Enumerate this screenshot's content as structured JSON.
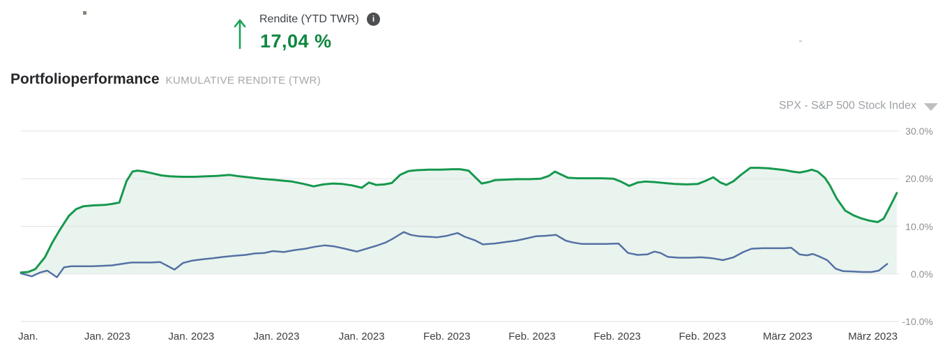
{
  "kpi": {
    "label": "Rendite (YTD TWR)",
    "value": "17,04 %",
    "info_glyph": "i",
    "arrow_icon": "arrow-up",
    "info_icon": "info-circle"
  },
  "title": {
    "main": "Portfolioperformance",
    "subtitle": "KUMULATIVE RENDITE (TWR)"
  },
  "benchmark_selector": {
    "value": "SPX - S&P 500 Stock Index",
    "chevron_icon": "chevron-down"
  },
  "colors": {
    "kpi_green": "#0d873f",
    "arrow_green": "#1aa158",
    "portfolio_line": "#16984e",
    "portfolio_fill": "#e9f4ee",
    "benchmark_line": "#5471a4",
    "gridline": "#e2e2e2",
    "y_label": "#8e9093",
    "x_label": "#3b3d40"
  },
  "chart_data": {
    "type": "area",
    "title": "Portfolioperformance — Kumulative Rendite (TWR)",
    "x_unit": "trading timeline Jan 2023 – mid Mar 2023 (day index from Jan 1)",
    "x_range": [
      0,
      73.5
    ],
    "ylim": [
      -13.5,
      32
    ],
    "grid": true,
    "legend_position": "none",
    "y_ticks": [
      {
        "label": "30.0%",
        "value": 30
      },
      {
        "label": "20.0%",
        "value": 20
      },
      {
        "label": "10.0%",
        "value": 10
      },
      {
        "label": "0.0%",
        "value": 0
      },
      {
        "label": "-10.0%",
        "value": -10
      }
    ],
    "x_ticks": [
      {
        "label": "Jan.",
        "x": 0.6
      },
      {
        "label": "Jan. 2023",
        "x": 7.2
      },
      {
        "label": "Jan. 2023",
        "x": 14.2
      },
      {
        "label": "Jan. 2023",
        "x": 21.3
      },
      {
        "label": "Jan. 2023",
        "x": 28.4
      },
      {
        "label": "Feb. 2023",
        "x": 35.5
      },
      {
        "label": "Feb. 2023",
        "x": 42.6
      },
      {
        "label": "Feb. 2023",
        "x": 49.7
      },
      {
        "label": "Feb. 2023",
        "x": 56.8
      },
      {
        "label": "März 2023",
        "x": 63.9
      },
      {
        "label": "März 2023",
        "x": 71.0
      }
    ],
    "series": [
      {
        "name": "Portfolio Rendite (TWR)",
        "type": "area-line",
        "color": "#16984e",
        "fill_color": "#e9f4ee",
        "baseline": 0,
        "final_value_pct": 17.04,
        "points": [
          [
            0,
            0.3
          ],
          [
            0.6,
            0.4
          ],
          [
            1.2,
            1.0
          ],
          [
            2,
            3.5
          ],
          [
            2.6,
            6.5
          ],
          [
            3.3,
            9.5
          ],
          [
            4,
            12.2
          ],
          [
            4.6,
            13.6
          ],
          [
            5.2,
            14.2
          ],
          [
            6,
            14.4
          ],
          [
            7,
            14.5
          ],
          [
            7.6,
            14.7
          ],
          [
            8.2,
            15.0
          ],
          [
            8.8,
            19.5
          ],
          [
            9.3,
            21.5
          ],
          [
            9.7,
            21.7
          ],
          [
            10.3,
            21.5
          ],
          [
            11,
            21.1
          ],
          [
            11.7,
            20.7
          ],
          [
            12.4,
            20.5
          ],
          [
            13.5,
            20.4
          ],
          [
            14.5,
            20.4
          ],
          [
            15.5,
            20.5
          ],
          [
            16.3,
            20.6
          ],
          [
            17.4,
            20.8
          ],
          [
            18.2,
            20.5
          ],
          [
            19,
            20.3
          ],
          [
            20,
            20.0
          ],
          [
            21,
            19.8
          ],
          [
            21.8,
            19.6
          ],
          [
            22.6,
            19.4
          ],
          [
            23.6,
            18.9
          ],
          [
            24.4,
            18.4
          ],
          [
            25.2,
            18.8
          ],
          [
            26,
            19.0
          ],
          [
            26.8,
            18.9
          ],
          [
            27.6,
            18.6
          ],
          [
            28.4,
            18.1
          ],
          [
            29,
            19.2
          ],
          [
            29.6,
            18.7
          ],
          [
            30.3,
            18.8
          ],
          [
            30.9,
            19.1
          ],
          [
            31.6,
            20.8
          ],
          [
            32.3,
            21.6
          ],
          [
            33,
            21.8
          ],
          [
            34,
            21.9
          ],
          [
            35,
            21.9
          ],
          [
            36,
            22.0
          ],
          [
            36.6,
            22.0
          ],
          [
            37.3,
            21.7
          ],
          [
            38,
            20.0
          ],
          [
            38.4,
            19.0
          ],
          [
            39,
            19.3
          ],
          [
            39.5,
            19.7
          ],
          [
            40.3,
            19.8
          ],
          [
            41.3,
            19.9
          ],
          [
            42.3,
            19.9
          ],
          [
            43.3,
            20.0
          ],
          [
            44,
            20.6
          ],
          [
            44.5,
            21.5
          ],
          [
            45,
            20.9
          ],
          [
            45.6,
            20.2
          ],
          [
            46.4,
            20.1
          ],
          [
            47.4,
            20.1
          ],
          [
            48.4,
            20.1
          ],
          [
            49.4,
            20.0
          ],
          [
            50,
            19.4
          ],
          [
            50.7,
            18.5
          ],
          [
            51.4,
            19.2
          ],
          [
            52,
            19.4
          ],
          [
            52.8,
            19.3
          ],
          [
            53.6,
            19.1
          ],
          [
            54.5,
            18.9
          ],
          [
            55.5,
            18.8
          ],
          [
            56.4,
            18.9
          ],
          [
            57.1,
            19.6
          ],
          [
            57.7,
            20.3
          ],
          [
            58.3,
            19.2
          ],
          [
            58.8,
            18.7
          ],
          [
            59.4,
            19.5
          ],
          [
            60,
            20.8
          ],
          [
            60.8,
            22.3
          ],
          [
            61.5,
            22.3
          ],
          [
            62.3,
            22.2
          ],
          [
            63,
            22.0
          ],
          [
            63.7,
            21.8
          ],
          [
            64.3,
            21.5
          ],
          [
            64.9,
            21.3
          ],
          [
            65.5,
            21.6
          ],
          [
            65.9,
            21.9
          ],
          [
            66.4,
            21.5
          ],
          [
            67,
            20.2
          ],
          [
            67.4,
            18.7
          ],
          [
            68,
            15.8
          ],
          [
            68.7,
            13.3
          ],
          [
            69.4,
            12.3
          ],
          [
            70,
            11.7
          ],
          [
            70.7,
            11.2
          ],
          [
            71.4,
            10.9
          ],
          [
            71.9,
            11.6
          ],
          [
            72.3,
            13.5
          ],
          [
            72.7,
            15.5
          ],
          [
            73,
            17.0
          ]
        ]
      },
      {
        "name": "SPX - S&P 500 Stock Index",
        "type": "line",
        "color": "#5471a4",
        "points": [
          [
            0,
            0.1
          ],
          [
            0.9,
            -0.5
          ],
          [
            1.6,
            0.3
          ],
          [
            2.2,
            0.7
          ],
          [
            3,
            -0.7
          ],
          [
            3.6,
            1.4
          ],
          [
            4.2,
            1.6
          ],
          [
            5,
            1.6
          ],
          [
            5.9,
            1.6
          ],
          [
            6.8,
            1.7
          ],
          [
            7.6,
            1.8
          ],
          [
            8.4,
            2.1
          ],
          [
            9.2,
            2.4
          ],
          [
            10,
            2.4
          ],
          [
            10.8,
            2.4
          ],
          [
            11.6,
            2.5
          ],
          [
            12.2,
            1.7
          ],
          [
            12.8,
            0.9
          ],
          [
            13.5,
            2.3
          ],
          [
            14.3,
            2.8
          ],
          [
            15.2,
            3.1
          ],
          [
            16,
            3.3
          ],
          [
            16.9,
            3.6
          ],
          [
            17.8,
            3.8
          ],
          [
            18.7,
            4.0
          ],
          [
            19.5,
            4.3
          ],
          [
            20.3,
            4.4
          ],
          [
            21,
            4.8
          ],
          [
            21.9,
            4.6
          ],
          [
            22.8,
            5.0
          ],
          [
            23.7,
            5.3
          ],
          [
            24.5,
            5.7
          ],
          [
            25.3,
            6.0
          ],
          [
            26.1,
            5.8
          ],
          [
            27,
            5.3
          ],
          [
            28,
            4.7
          ],
          [
            28.8,
            5.3
          ],
          [
            29.6,
            5.9
          ],
          [
            30.4,
            6.6
          ],
          [
            31,
            7.4
          ],
          [
            31.9,
            8.8
          ],
          [
            32.5,
            8.2
          ],
          [
            33.2,
            7.9
          ],
          [
            34,
            7.8
          ],
          [
            34.7,
            7.7
          ],
          [
            35.5,
            8.0
          ],
          [
            36.4,
            8.6
          ],
          [
            37,
            7.8
          ],
          [
            37.8,
            7.1
          ],
          [
            38.5,
            6.2
          ],
          [
            39.5,
            6.4
          ],
          [
            40.4,
            6.7
          ],
          [
            41.3,
            7.0
          ],
          [
            42.2,
            7.5
          ],
          [
            42.9,
            7.9
          ],
          [
            43.7,
            8.0
          ],
          [
            44.6,
            8.2
          ],
          [
            45.4,
            7.0
          ],
          [
            46,
            6.6
          ],
          [
            46.8,
            6.3
          ],
          [
            47.8,
            6.3
          ],
          [
            48.8,
            6.3
          ],
          [
            49.8,
            6.4
          ],
          [
            50.6,
            4.4
          ],
          [
            51.4,
            4.0
          ],
          [
            52.2,
            4.1
          ],
          [
            52.8,
            4.7
          ],
          [
            53.3,
            4.4
          ],
          [
            53.9,
            3.6
          ],
          [
            54.8,
            3.4
          ],
          [
            55.8,
            3.4
          ],
          [
            56.7,
            3.5
          ],
          [
            57.6,
            3.3
          ],
          [
            58.5,
            2.9
          ],
          [
            59.4,
            3.5
          ],
          [
            60.2,
            4.6
          ],
          [
            60.9,
            5.3
          ],
          [
            61.8,
            5.4
          ],
          [
            62.7,
            5.4
          ],
          [
            63.6,
            5.4
          ],
          [
            64.2,
            5.5
          ],
          [
            64.9,
            4.1
          ],
          [
            65.5,
            3.9
          ],
          [
            66,
            4.2
          ],
          [
            66.6,
            3.6
          ],
          [
            67.2,
            2.9
          ],
          [
            67.9,
            1.1
          ],
          [
            68.5,
            0.6
          ],
          [
            69.3,
            0.5
          ],
          [
            70.1,
            0.4
          ],
          [
            70.9,
            0.4
          ],
          [
            71.5,
            0.7
          ],
          [
            72.2,
            2.1
          ]
        ]
      }
    ]
  }
}
